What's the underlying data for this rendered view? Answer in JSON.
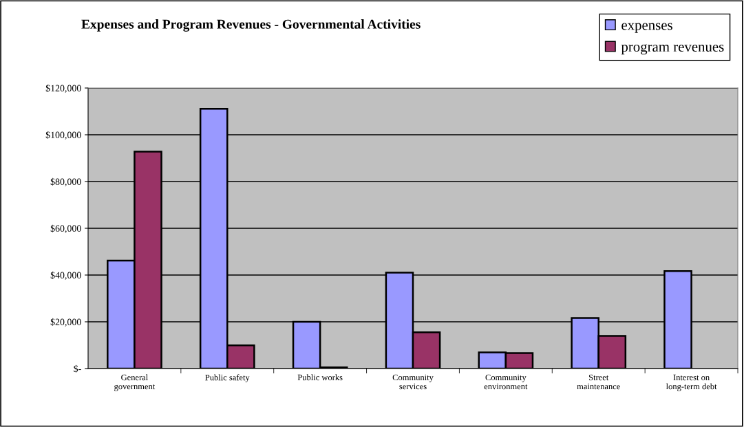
{
  "chart_data": {
    "type": "bar",
    "title": "Expenses and Program Revenues - Governmental Activities",
    "categories": [
      "General government",
      "Public safety",
      "Public works",
      "Community services",
      "Community environment",
      "Street maintenance",
      "Interest on long-term debt"
    ],
    "series": [
      {
        "name": "expenses",
        "color": "#9999ff",
        "values": [
          46200,
          111100,
          20000,
          41000,
          6900,
          21600,
          41700
        ]
      },
      {
        "name": "program revenues",
        "color": "#993366",
        "values": [
          92800,
          9900,
          500,
          15500,
          6600,
          14000,
          null
        ]
      }
    ],
    "ylim": [
      0,
      120000
    ],
    "yticks": [
      {
        "value": 0,
        "label": "$-"
      },
      {
        "value": 20000,
        "label": "$20,000"
      },
      {
        "value": 40000,
        "label": "$40,000"
      },
      {
        "value": 60000,
        "label": "$60,000"
      },
      {
        "value": 80000,
        "label": "$80,000"
      },
      {
        "value": 100000,
        "label": "$100,000"
      },
      {
        "value": 120000,
        "label": "$120,000"
      }
    ],
    "grid": "y",
    "legend": "top right"
  }
}
